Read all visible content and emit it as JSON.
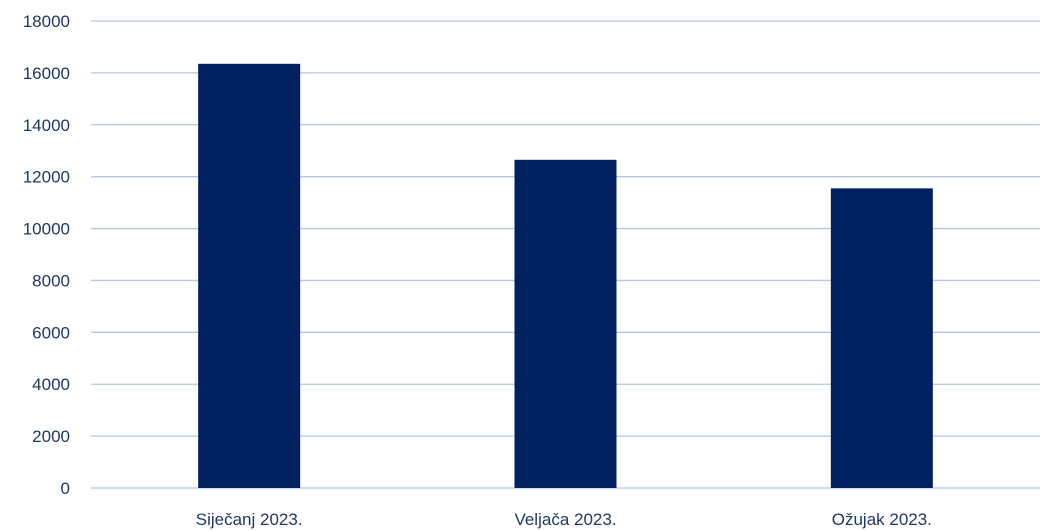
{
  "chart_data": {
    "type": "bar",
    "title": "",
    "xlabel": "",
    "ylabel": "",
    "categories": [
      "Siječanj 2023.",
      "Veljača 2023.",
      "Ožujak 2023."
    ],
    "values": [
      16350,
      12650,
      11550
    ],
    "ylim": [
      0,
      18000
    ],
    "yticks": [
      0,
      2000,
      4000,
      6000,
      8000,
      10000,
      12000,
      14000,
      16000,
      18000
    ],
    "grid": true,
    "legend": "none",
    "colors": {
      "bar": "#002060",
      "grid": "#b4c6e7",
      "tick_text": "#1f3864"
    }
  }
}
